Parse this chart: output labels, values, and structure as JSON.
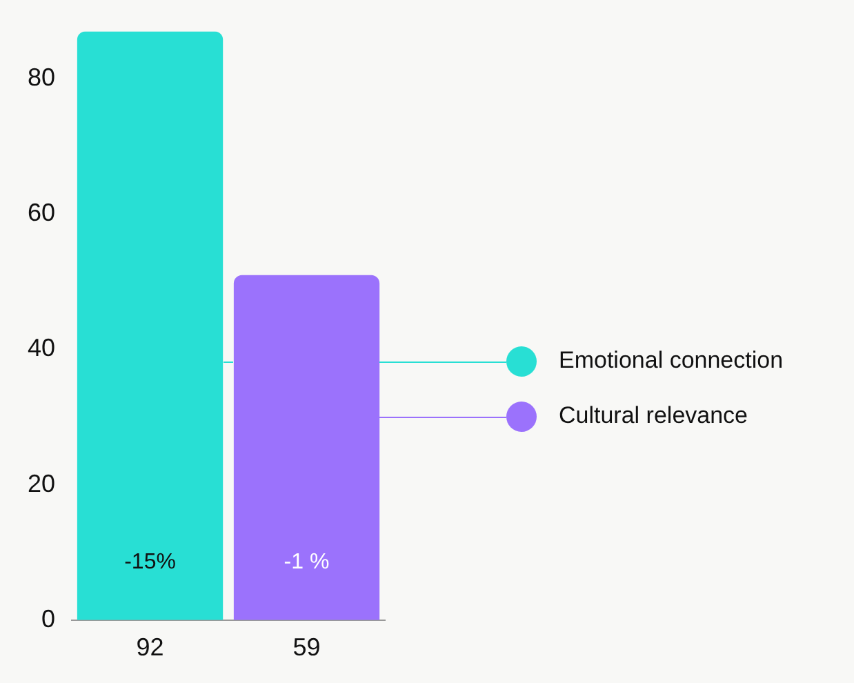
{
  "chart_data": {
    "type": "bar",
    "categories": [
      "92",
      "59"
    ],
    "series": [
      {
        "name": "Emotional connection",
        "color": "#28dfd4",
        "values": [
          87,
          null
        ]
      },
      {
        "name": "Cultural relevance",
        "color": "#9b72fc",
        "values": [
          null,
          51
        ]
      }
    ],
    "annotations": [
      "-15%",
      "-1 %"
    ],
    "ylim": [
      0,
      87
    ],
    "yticks": [
      0,
      20,
      40,
      60,
      80
    ],
    "grid": false,
    "legend": "right"
  }
}
